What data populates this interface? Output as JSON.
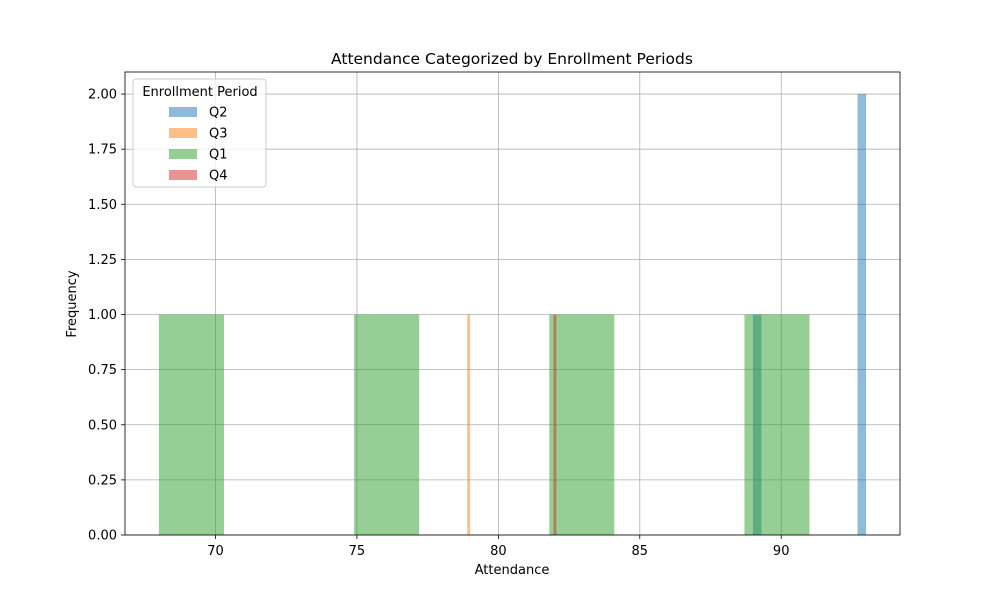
{
  "chart_data": {
    "type": "bar",
    "title": "Attendance Categorized by Enrollment Periods",
    "xlabel": "Attendance",
    "ylabel": "Frequency",
    "xlim": [
      66.8,
      94.2
    ],
    "ylim": [
      0,
      2.1
    ],
    "xticks": [
      70,
      75,
      80,
      85,
      90
    ],
    "yticks": [
      0.0,
      0.25,
      0.5,
      0.75,
      1.0,
      1.25,
      1.5,
      1.75,
      2.0
    ],
    "grid": true,
    "legend": {
      "title": "Enrollment Period",
      "placement": "top-left"
    },
    "series": [
      {
        "name": "Q2",
        "color": "#1f77b4",
        "bars": [
          {
            "x0": 92.7,
            "x1": 93.0,
            "count": 2
          },
          {
            "x0": 89.0,
            "x1": 89.3,
            "count": 1
          }
        ]
      },
      {
        "name": "Q3",
        "color": "#ff7f0e",
        "bars": [
          {
            "x0": 78.9,
            "x1": 79.0,
            "count": 1
          }
        ]
      },
      {
        "name": "Q1",
        "color": "#2ca02c",
        "bars": [
          {
            "x0": 68.0,
            "x1": 70.3,
            "count": 1
          },
          {
            "x0": 74.9,
            "x1": 77.2,
            "count": 1
          },
          {
            "x0": 81.8,
            "x1": 84.1,
            "count": 1
          },
          {
            "x0": 88.7,
            "x1": 91.0,
            "count": 1
          }
        ]
      },
      {
        "name": "Q4",
        "color": "#d62728",
        "bars": [
          {
            "x0": 81.95,
            "x1": 82.05,
            "count": 1
          }
        ]
      }
    ]
  }
}
